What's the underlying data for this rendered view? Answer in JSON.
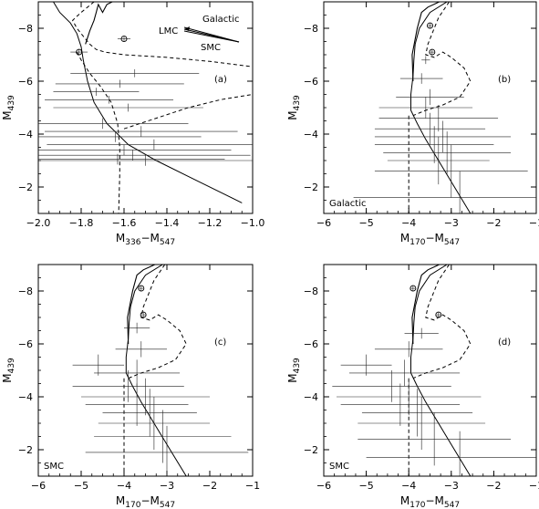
{
  "chart_data": [
    {
      "type": "scatter",
      "panel_label": "(a)",
      "corner_note": "",
      "xlabel": {
        "base": "M",
        "sub": "336",
        "dash": "−",
        "base2": "M",
        "sub2": "547"
      },
      "ylabel": {
        "base": "M",
        "sub": "439"
      },
      "xlim": [
        -2.0,
        -1.0
      ],
      "ylim": [
        -1,
        -9
      ],
      "xticks": [
        -2.0,
        -1.8,
        -1.6,
        -1.4,
        -1.2,
        -1.0
      ],
      "xtick_labels": [
        "−2.0",
        "−1.8",
        "−1.6",
        "−1.4",
        "−1.2",
        "−1.0"
      ],
      "yticks": [
        -2,
        -4,
        -6,
        -8
      ],
      "ytick_labels": [
        "−2",
        "−4",
        "−6",
        "−8"
      ],
      "reddening": {
        "labels": [
          "Galactic",
          "LMC",
          "SMC"
        ]
      },
      "points": [
        {
          "x": -1.81,
          "y": -7.1,
          "xerr": 0.04,
          "yerr": 0.1,
          "circled": true
        },
        {
          "x": -1.6,
          "y": -7.6,
          "xerr": 0.03,
          "yerr": 0.1,
          "circled": true
        },
        {
          "x": -1.55,
          "y": -6.3,
          "xerr": 0.3,
          "yerr": 0.15
        },
        {
          "x": -1.62,
          "y": -5.9,
          "xerr": 0.3,
          "yerr": 0.15
        },
        {
          "x": -1.73,
          "y": -5.6,
          "xerr": 0.2,
          "yerr": 0.15
        },
        {
          "x": -1.67,
          "y": -5.3,
          "xerr": 0.3,
          "yerr": 0.15
        },
        {
          "x": -1.58,
          "y": -5.0,
          "xerr": 0.35,
          "yerr": 0.15
        },
        {
          "x": -1.7,
          "y": -4.4,
          "xerr": 0.4,
          "yerr": 0.2
        },
        {
          "x": -1.52,
          "y": -4.1,
          "xerr": 0.45,
          "yerr": 0.2
        },
        {
          "x": -1.64,
          "y": -3.9,
          "xerr": 0.4,
          "yerr": 0.2
        },
        {
          "x": -1.46,
          "y": -3.6,
          "xerr": 0.5,
          "yerr": 0.2
        },
        {
          "x": -1.6,
          "y": -3.4,
          "xerr": 0.5,
          "yerr": 0.2
        },
        {
          "x": -1.56,
          "y": -3.2,
          "xerr": 0.55,
          "yerr": 0.2
        },
        {
          "x": -1.63,
          "y": -3.05,
          "xerr": 0.5,
          "yerr": 0.2
        },
        {
          "x": -1.5,
          "y": -3.0,
          "xerr": 0.55,
          "yerr": 0.2
        }
      ]
    },
    {
      "type": "scatter",
      "panel_label": "(b)",
      "corner_note": "Galactic",
      "xlabel": {
        "base": "M",
        "sub": "170",
        "dash": "−",
        "base2": "M",
        "sub2": "547"
      },
      "ylabel": {
        "base": "M",
        "sub": "439"
      },
      "xlim": [
        -6,
        -1
      ],
      "ylim": [
        -1,
        -9
      ],
      "xticks": [
        -6,
        -5,
        -4,
        -3,
        -2,
        -1
      ],
      "xtick_labels": [
        "−6",
        "−5",
        "−4",
        "−3",
        "−2",
        "−1"
      ],
      "yticks": [
        -2,
        -4,
        -6,
        -8
      ],
      "ytick_labels": [
        "−2",
        "−4",
        "−6",
        "−8"
      ],
      "points": [
        {
          "x": -3.5,
          "y": -8.1,
          "xerr": 0.05,
          "yerr": 0.1,
          "circled": true
        },
        {
          "x": -3.45,
          "y": -7.1,
          "xerr": 0.05,
          "yerr": 0.1,
          "circled": true
        },
        {
          "x": -3.6,
          "y": -6.8,
          "xerr": 0.1,
          "yerr": 0.15
        },
        {
          "x": -3.7,
          "y": -6.1,
          "xerr": 0.5,
          "yerr": 0.2
        },
        {
          "x": -3.5,
          "y": -5.4,
          "xerr": 0.8,
          "yerr": 0.3
        },
        {
          "x": -3.6,
          "y": -5.0,
          "xerr": 1.1,
          "yerr": 0.4
        },
        {
          "x": -3.3,
          "y": -4.6,
          "xerr": 1.4,
          "yerr": 0.5
        },
        {
          "x": -3.5,
          "y": -4.2,
          "xerr": 1.3,
          "yerr": 0.6
        },
        {
          "x": -3.2,
          "y": -3.9,
          "xerr": 1.6,
          "yerr": 0.6
        },
        {
          "x": -3.4,
          "y": -3.6,
          "xerr": 1.4,
          "yerr": 0.7
        },
        {
          "x": -3.1,
          "y": -3.3,
          "xerr": 1.5,
          "yerr": 0.8
        },
        {
          "x": -3.3,
          "y": -3.0,
          "xerr": 1.2,
          "yerr": 0.9
        },
        {
          "x": -3.0,
          "y": -2.6,
          "xerr": 1.8,
          "yerr": 1.0
        },
        {
          "x": -2.8,
          "y": -1.6,
          "xerr": 2.5,
          "yerr": 1.0
        }
      ]
    },
    {
      "type": "scatter",
      "panel_label": "(c)",
      "corner_note": "SMC",
      "xlabel": {
        "base": "M",
        "sub": "170",
        "dash": "−",
        "base2": "M",
        "sub2": "547"
      },
      "ylabel": {
        "base": "M",
        "sub": "439"
      },
      "xlim": [
        -6,
        -1
      ],
      "ylim": [
        -1,
        -9
      ],
      "xticks": [
        -6,
        -5,
        -4,
        -3,
        -2,
        -1
      ],
      "xtick_labels": [
        "−6",
        "−5",
        "−4",
        "−3",
        "−2",
        "−1"
      ],
      "yticks": [
        -2,
        -4,
        -6,
        -8
      ],
      "ytick_labels": [
        "−2",
        "−4",
        "−6",
        "−8"
      ],
      "points": [
        {
          "x": -3.6,
          "y": -8.1,
          "xerr": 0.05,
          "yerr": 0.1,
          "circled": true
        },
        {
          "x": -3.55,
          "y": -7.1,
          "xerr": 0.05,
          "yerr": 0.1,
          "circled": true
        },
        {
          "x": -3.7,
          "y": -6.6,
          "xerr": 0.3,
          "yerr": 0.2
        },
        {
          "x": -3.6,
          "y": -5.8,
          "xerr": 0.6,
          "yerr": 0.3
        },
        {
          "x": -4.6,
          "y": -5.2,
          "xerr": 0.6,
          "yerr": 0.4
        },
        {
          "x": -3.7,
          "y": -4.9,
          "xerr": 1.0,
          "yerr": 0.5
        },
        {
          "x": -3.9,
          "y": -4.4,
          "xerr": 1.3,
          "yerr": 0.6
        },
        {
          "x": -3.5,
          "y": -4.0,
          "xerr": 1.5,
          "yerr": 0.7
        },
        {
          "x": -3.7,
          "y": -3.7,
          "xerr": 1.2,
          "yerr": 0.8
        },
        {
          "x": -3.4,
          "y": -3.4,
          "xerr": 1.1,
          "yerr": 0.9
        },
        {
          "x": -3.3,
          "y": -3.0,
          "xerr": 1.3,
          "yerr": 1.0
        },
        {
          "x": -3.1,
          "y": -2.5,
          "xerr": 1.6,
          "yerr": 1.0
        },
        {
          "x": -3.0,
          "y": -1.9,
          "xerr": 1.9,
          "yerr": 1.0
        }
      ]
    },
    {
      "type": "scatter",
      "panel_label": "(d)",
      "corner_note": "SMC",
      "xlabel": {
        "base": "M",
        "sub": "170",
        "dash": "−",
        "base2": "M",
        "sub2": "547"
      },
      "ylabel": {
        "base": "M",
        "sub": "439"
      },
      "xlim": [
        -6,
        -1
      ],
      "ylim": [
        -1,
        -9
      ],
      "xticks": [
        -6,
        -5,
        -4,
        -3,
        -2,
        -1
      ],
      "xtick_labels": [
        "−6",
        "−5",
        "−4",
        "−3",
        "−2",
        "−1"
      ],
      "yticks": [
        -2,
        -4,
        -6,
        -8
      ],
      "ytick_labels": [
        "−2",
        "−4",
        "−6",
        "−8"
      ],
      "points": [
        {
          "x": -3.9,
          "y": -8.1,
          "xerr": 0.05,
          "yerr": 0.1,
          "circled": true
        },
        {
          "x": -3.3,
          "y": -7.1,
          "xerr": 0.05,
          "yerr": 0.1,
          "circled": true
        },
        {
          "x": -3.7,
          "y": -6.4,
          "xerr": 0.4,
          "yerr": 0.2
        },
        {
          "x": -4.0,
          "y": -5.8,
          "xerr": 0.8,
          "yerr": 0.3
        },
        {
          "x": -5.0,
          "y": -5.2,
          "xerr": 0.6,
          "yerr": 0.4
        },
        {
          "x": -4.1,
          "y": -4.9,
          "xerr": 1.3,
          "yerr": 0.5
        },
        {
          "x": -4.4,
          "y": -4.4,
          "xerr": 1.4,
          "yerr": 0.6
        },
        {
          "x": -4.0,
          "y": -4.0,
          "xerr": 1.7,
          "yerr": 0.7
        },
        {
          "x": -4.2,
          "y": -3.7,
          "xerr": 1.4,
          "yerr": 0.8
        },
        {
          "x": -3.8,
          "y": -3.4,
          "xerr": 1.3,
          "yerr": 0.9
        },
        {
          "x": -3.7,
          "y": -3.0,
          "xerr": 1.5,
          "yerr": 1.0
        },
        {
          "x": -3.4,
          "y": -2.4,
          "xerr": 1.8,
          "yerr": 1.0
        },
        {
          "x": -2.8,
          "y": -1.7,
          "xerr": 2.2,
          "yerr": 1.0
        }
      ]
    }
  ]
}
